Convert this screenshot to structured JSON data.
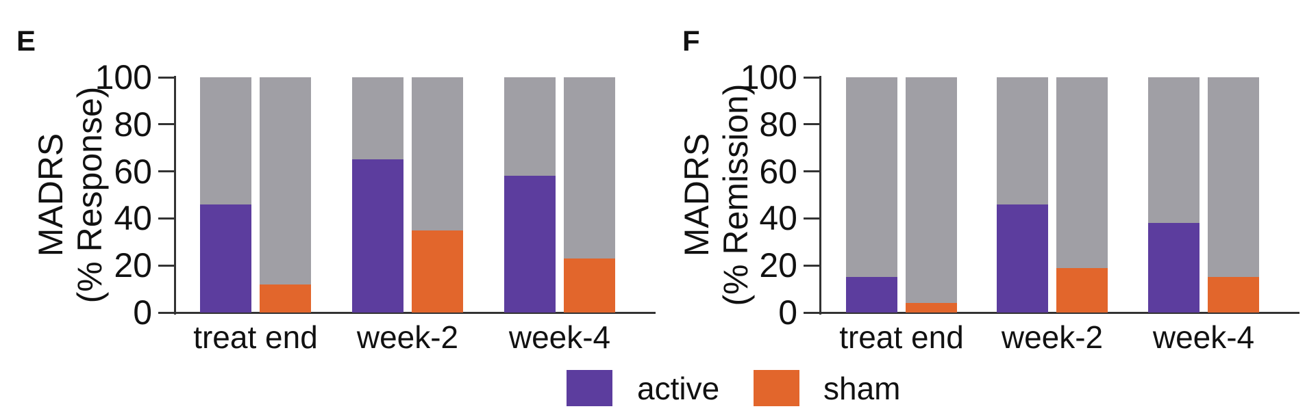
{
  "chart_data": [
    {
      "type": "bar",
      "panel_label": "E",
      "ylabel": "MADRS (% Response)",
      "ylabel_lines": [
        "MADRS",
        "(% Response)"
      ],
      "categories": [
        "treat end",
        "week-2",
        "week-4"
      ],
      "series": [
        {
          "name": "active",
          "values": [
            46,
            65,
            58
          ],
          "color": "#5C3D9E"
        },
        {
          "name": "sham",
          "values": [
            12,
            35,
            23
          ],
          "color": "#E2662C"
        }
      ],
      "background_to_100_color": "#A09FA5",
      "ylim": [
        0,
        100
      ],
      "yticks": [
        0,
        20,
        40,
        60,
        80,
        100
      ],
      "grid": false,
      "unit": "%",
      "legend_position": "bottom"
    },
    {
      "type": "bar",
      "panel_label": "F",
      "ylabel": "MADRS (% Remission)",
      "ylabel_lines": [
        "MADRS",
        "(% Remission)"
      ],
      "categories": [
        "treat end",
        "week-2",
        "week-4"
      ],
      "series": [
        {
          "name": "active",
          "values": [
            15,
            46,
            38
          ],
          "color": "#5C3D9E"
        },
        {
          "name": "sham",
          "values": [
            4,
            19,
            15
          ],
          "color": "#E2662C"
        }
      ],
      "background_to_100_color": "#A09FA5",
      "ylim": [
        0,
        100
      ],
      "yticks": [
        0,
        20,
        40,
        60,
        80,
        100
      ],
      "grid": false,
      "unit": "%",
      "legend_position": "bottom"
    }
  ],
  "legend": {
    "position": "bottom",
    "items": [
      {
        "label": "active",
        "color": "#5C3D9E"
      },
      {
        "label": "sham",
        "color": "#E2662C"
      }
    ]
  },
  "colors": {
    "active": "#5C3D9E",
    "sham": "#E2662C",
    "remainder_gray": "#A09FA5",
    "axis": "#333333",
    "text": "#111111",
    "background": "#FFFFFF"
  }
}
